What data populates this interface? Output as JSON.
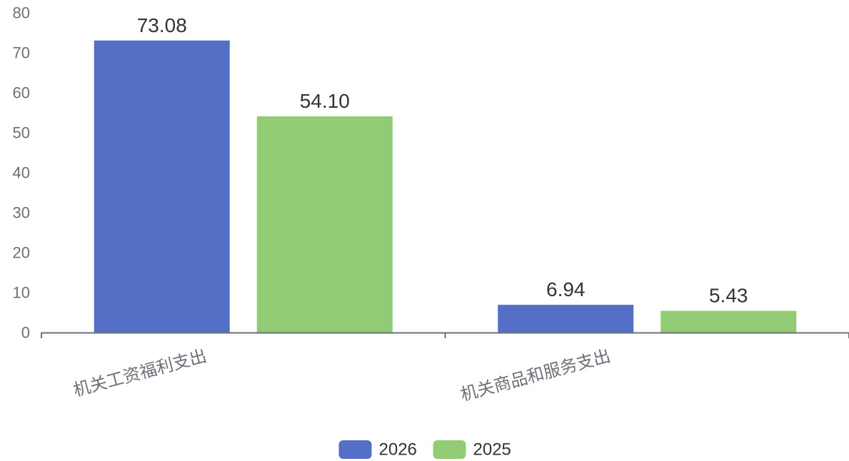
{
  "chart_data": {
    "type": "bar",
    "categories": [
      "机关工资福利支出",
      "机关商品和服务支出"
    ],
    "series": [
      {
        "name": "2026",
        "values": [
          73.08,
          6.94
        ],
        "labels": [
          "73.08",
          "6.94"
        ],
        "color": "#5470c6"
      },
      {
        "name": "2025",
        "values": [
          54.1,
          5.43
        ],
        "labels": [
          "54.10",
          "5.43"
        ],
        "color": "#91cc75"
      }
    ],
    "ylim": [
      0,
      80
    ],
    "yticks": [
      "0",
      "10",
      "20",
      "30",
      "40",
      "50",
      "60",
      "70",
      "80"
    ],
    "grid": false,
    "legend_position": "bottom-center",
    "title": "",
    "xlabel": "",
    "ylabel": ""
  }
}
